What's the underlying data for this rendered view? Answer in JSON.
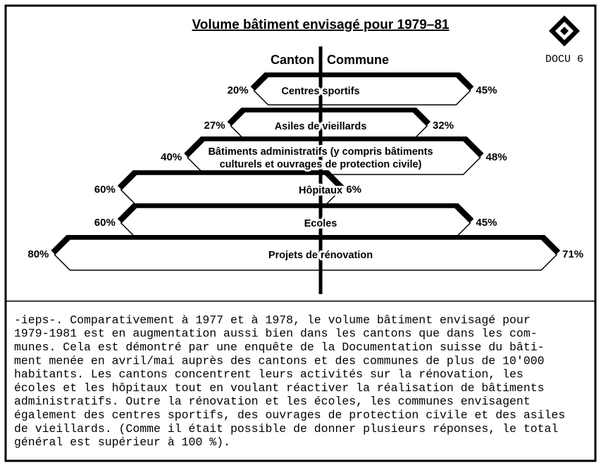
{
  "chart_data": {
    "type": "butterfly",
    "title": "Volume bâtiment envisagé pour 1979–81",
    "categories": [
      "Centres sportifs",
      "Asiles de vieillards",
      "Bâtiments administratifs (y compris bâtiments\nculturels et ouvrages de protection civile)",
      "Hôpitaux",
      "Ecoles",
      "Projets de rénovation"
    ],
    "series": [
      {
        "name": "Canton",
        "color": "#ffffff",
        "values": [
          20,
          27,
          40,
          60,
          60,
          80
        ],
        "value_labels": [
          "20%",
          "27%",
          "40%",
          "60%",
          "60%",
          "80%"
        ]
      },
      {
        "name": "Commune",
        "color": "#ffffff",
        "values": [
          45,
          32,
          48,
          6,
          45,
          71
        ],
        "value_labels": [
          "45%",
          "32%",
          "48%",
          "6%",
          "45%",
          "71%"
        ]
      }
    ]
  },
  "badge": "DOCU 6",
  "body": {
    "lines": [
      "-ieps-. Comparativement à 1977 et à 1978, le volume bâtiment envisagé pour",
      "1979-1981 est en augmentation aussi bien dans les cantons que dans les com-",
      "munes. Cela est démontré par une enquête de la Documentation suisse du bâti-",
      "ment menée en avril/mai auprès des cantons et des communes de plus de 10'000",
      "habitants. Les cantons concentrent leurs activités sur la rénovation, les",
      "écoles et les hôpitaux tout en voulant réactiver la réalisation de bâtiments",
      "administratifs. Outre la rénovation et les écoles, les communes envisagent",
      "également des centres sportifs, des ouvrages de protection civile et des asiles",
      "de vieillards. (Comme il était possible de donner plusieurs réponses, le total",
      "général est supérieur à 100 %)."
    ]
  }
}
